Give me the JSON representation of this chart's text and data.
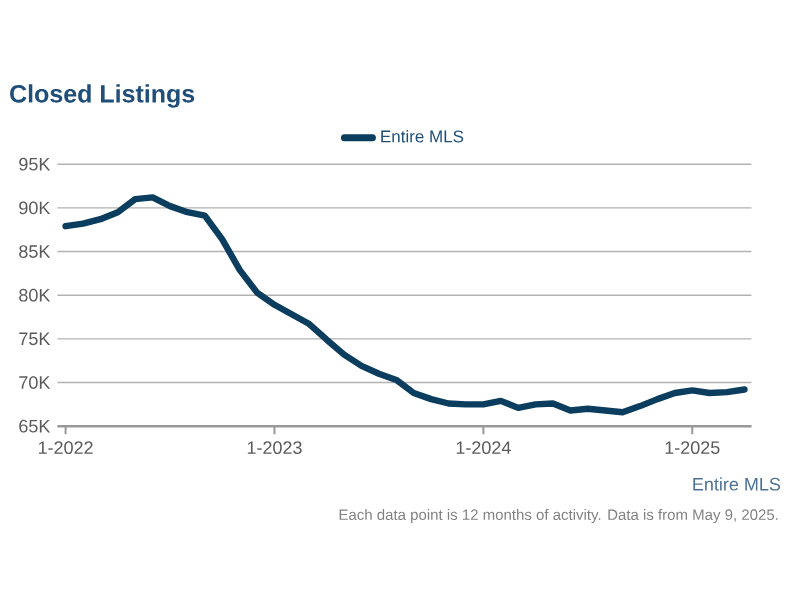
{
  "chart_data": {
    "type": "line",
    "title": "Closed Listings",
    "x": [
      "2022-01",
      "2022-02",
      "2022-03",
      "2022-04",
      "2022-05",
      "2022-06",
      "2022-07",
      "2022-08",
      "2022-09",
      "2022-10",
      "2022-11",
      "2022-12",
      "2023-01",
      "2023-02",
      "2023-03",
      "2023-04",
      "2023-05",
      "2023-06",
      "2023-07",
      "2023-08",
      "2023-09",
      "2023-10",
      "2023-11",
      "2023-12",
      "2024-01",
      "2024-02",
      "2024-03",
      "2024-04",
      "2024-05",
      "2024-06",
      "2024-07",
      "2024-08",
      "2024-09",
      "2024-10",
      "2024-11",
      "2024-12",
      "2025-01",
      "2025-02",
      "2025-03",
      "2025-04"
    ],
    "series": [
      {
        "name": "Entire MLS",
        "color": "#0b3d5e",
        "values": [
          87900,
          88200,
          88700,
          89500,
          91000,
          91200,
          90200,
          89500,
          89100,
          86400,
          82900,
          80300,
          78900,
          77800,
          76700,
          74900,
          73200,
          71900,
          71000,
          70300,
          68800,
          68100,
          67600,
          67500,
          67500,
          67900,
          67100,
          67500,
          67600,
          66800,
          67000,
          66800,
          66600,
          67300,
          68100,
          68800,
          69100,
          68800,
          68900,
          69200
        ]
      }
    ],
    "xlim": [
      "2021-12-17",
      "2025-04-13"
    ],
    "xticks": [
      {
        "value": "2022-01",
        "label": "1-2022"
      },
      {
        "value": "2023-01",
        "label": "1-2023"
      },
      {
        "value": "2024-01",
        "label": "1-2024"
      },
      {
        "value": "2025-01",
        "label": "1-2025"
      }
    ],
    "ylim": [
      65000,
      95000
    ],
    "yticks": [
      {
        "value": 65000,
        "label": "65K"
      },
      {
        "value": 70000,
        "label": "70K"
      },
      {
        "value": 75000,
        "label": "75K"
      },
      {
        "value": 80000,
        "label": "80K"
      },
      {
        "value": 85000,
        "label": "85K"
      },
      {
        "value": 90000,
        "label": "90K"
      },
      {
        "value": 95000,
        "label": "95K"
      }
    ],
    "grid": "y",
    "legend": "top",
    "marker": "none",
    "annotations": [
      "Entire MLS",
      "Each data point is 12 months of activity. Data is from May 9, 2025."
    ]
  }
}
